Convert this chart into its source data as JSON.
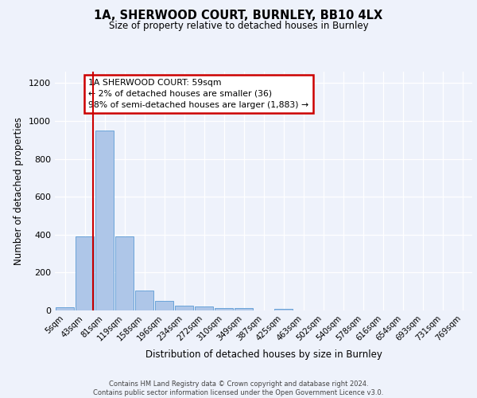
{
  "title_line1": "1A, SHERWOOD COURT, BURNLEY, BB10 4LX",
  "title_line2": "Size of property relative to detached houses in Burnley",
  "xlabel": "Distribution of detached houses by size in Burnley",
  "ylabel": "Number of detached properties",
  "bin_labels": [
    "5sqm",
    "43sqm",
    "81sqm",
    "119sqm",
    "158sqm",
    "196sqm",
    "234sqm",
    "272sqm",
    "310sqm",
    "349sqm",
    "387sqm",
    "425sqm",
    "463sqm",
    "502sqm",
    "540sqm",
    "578sqm",
    "616sqm",
    "654sqm",
    "693sqm",
    "731sqm",
    "769sqm"
  ],
  "bar_values": [
    15,
    390,
    950,
    390,
    105,
    50,
    25,
    20,
    12,
    12,
    0,
    10,
    0,
    0,
    0,
    0,
    0,
    0,
    0,
    0,
    0
  ],
  "bar_color": "#aec6e8",
  "bar_edgecolor": "#5b9bd5",
  "vline_color": "#cc0000",
  "annotation_text": "1A SHERWOOD COURT: 59sqm\n← 2% of detached houses are smaller (36)\n98% of semi-detached houses are larger (1,883) →",
  "annotation_box_color": "#ffffff",
  "annotation_box_edgecolor": "#cc0000",
  "ylim": [
    0,
    1260
  ],
  "yticks": [
    0,
    200,
    400,
    600,
    800,
    1000,
    1200
  ],
  "footnote": "Contains HM Land Registry data © Crown copyright and database right 2024.\nContains public sector information licensed under the Open Government Licence v3.0.",
  "bg_color": "#eef2fb",
  "plot_bg_color": "#eef2fb",
  "vline_bin": 1.42
}
